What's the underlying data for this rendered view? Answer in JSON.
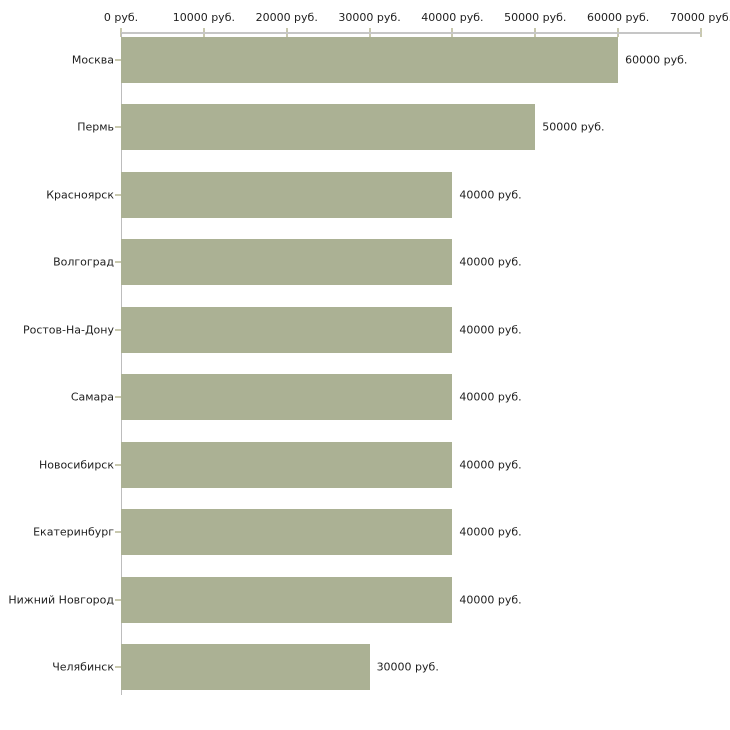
{
  "chart_data": {
    "type": "bar",
    "orientation": "horizontal",
    "title": "",
    "unit": "руб.",
    "categories": [
      "Москва",
      "Пермь",
      "Красноярск",
      "Волгоград",
      "Ростов-На-Дону",
      "Самара",
      "Новосибирск",
      "Екатеринбург",
      "Нижний Новгород",
      "Челябинск"
    ],
    "values": [
      60000,
      50000,
      40000,
      40000,
      40000,
      40000,
      40000,
      40000,
      40000,
      30000
    ],
    "bar_labels": [
      "60000 руб.",
      "50000 руб.",
      "40000 руб.",
      "40000 руб.",
      "40000 руб.",
      "40000 руб.",
      "40000 руб.",
      "40000 руб.",
      "40000 руб.",
      "30000 руб."
    ],
    "x_tick_values": [
      0,
      10000,
      20000,
      30000,
      40000,
      50000,
      60000,
      70000
    ],
    "x_tick_labels": [
      "0 руб.",
      "10000 руб.",
      "20000 руб.",
      "30000 руб.",
      "40000 руб.",
      "50000 руб.",
      "60000 руб.",
      "70000 руб."
    ],
    "xlim": [
      0,
      70000
    ],
    "x_axis_position": "top",
    "grid": "off",
    "legend": "none",
    "colors": {
      "bar": "#abb194",
      "axis_line": "#c6c6c6",
      "y_axis_line": "#bdbdbd",
      "tick_mark": "#c9c9af",
      "text": "#1f1f1f",
      "background": "#ffffff"
    }
  }
}
